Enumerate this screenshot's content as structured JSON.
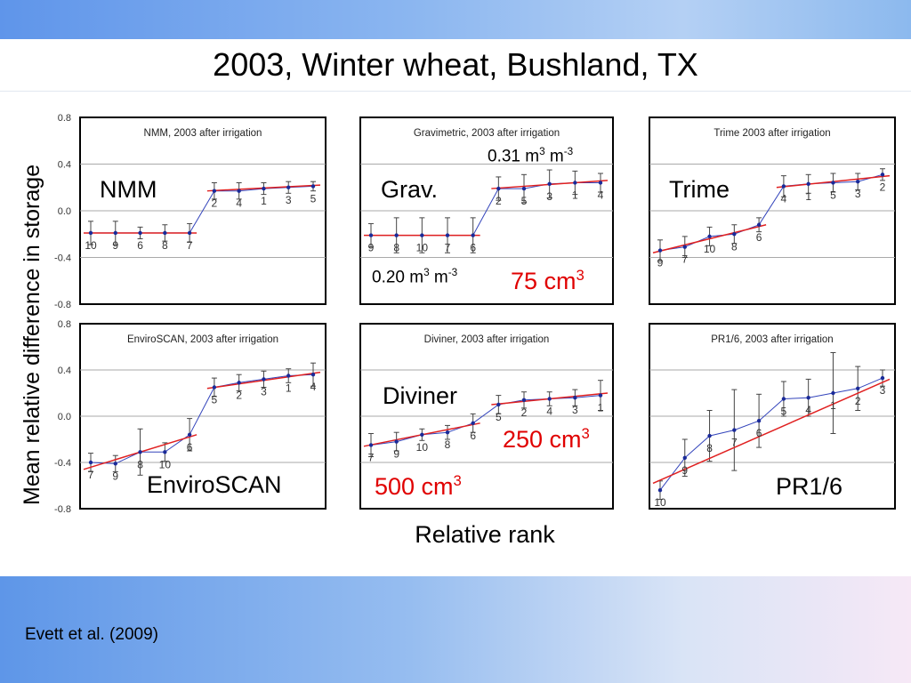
{
  "slide": {
    "title": "2003, Winter wheat, Bushland, TX",
    "ylabel": "Mean relative difference in storage",
    "xlabel": "Relative rank",
    "citation": "Evett et al. (2009)"
  },
  "y_ticks": [
    "0.8",
    "0.4",
    "0.0",
    "-0.4",
    "-0.8"
  ],
  "colors": {
    "data_line": "#3344bb",
    "fit_line": "#e02020",
    "frame": "#000000",
    "grid": "#aaaaaa",
    "error_bar": "#444444",
    "red_text": "#e00000"
  },
  "chart_data": [
    {
      "type": "line",
      "title": "NMM, 2003 after irrigation",
      "label": "NMM",
      "ylim": [
        -0.8,
        0.8
      ],
      "grid": true,
      "points": [
        {
          "rank": "10",
          "y": -0.19,
          "err": 0.1
        },
        {
          "rank": "9",
          "y": -0.19,
          "err": 0.1
        },
        {
          "rank": "6",
          "y": -0.19,
          "err": 0.05
        },
        {
          "rank": "8",
          "y": -0.19,
          "err": 0.07
        },
        {
          "rank": "7",
          "y": -0.19,
          "err": 0.08
        },
        {
          "rank": "2",
          "y": 0.17,
          "err": 0.07
        },
        {
          "rank": "4",
          "y": 0.17,
          "err": 0.07
        },
        {
          "rank": "1",
          "y": 0.19,
          "err": 0.05
        },
        {
          "rank": "3",
          "y": 0.2,
          "err": 0.05
        },
        {
          "rank": "5",
          "y": 0.21,
          "err": 0.04
        }
      ],
      "fits": [
        {
          "from": 0,
          "to": 4,
          "y0": -0.19,
          "y1": -0.19
        },
        {
          "from": 5,
          "to": 9,
          "y0": 0.17,
          "y1": 0.22
        }
      ]
    },
    {
      "type": "line",
      "title": "Gravimetric, 2003 after irrigation",
      "label": "Grav.",
      "ylim": [
        -0.8,
        0.8
      ],
      "grid": true,
      "points": [
        {
          "rank": "9",
          "y": -0.21,
          "err": 0.1
        },
        {
          "rank": "8",
          "y": -0.21,
          "err": 0.15
        },
        {
          "rank": "10",
          "y": -0.21,
          "err": 0.15
        },
        {
          "rank": "7",
          "y": -0.21,
          "err": 0.15
        },
        {
          "rank": "6",
          "y": -0.21,
          "err": 0.15
        },
        {
          "rank": "2",
          "y": 0.19,
          "err": 0.1
        },
        {
          "rank": "5",
          "y": 0.19,
          "err": 0.12
        },
        {
          "rank": "3",
          "y": 0.23,
          "err": 0.12
        },
        {
          "rank": "1",
          "y": 0.24,
          "err": 0.1
        },
        {
          "rank": "4",
          "y": 0.24,
          "err": 0.08
        }
      ],
      "fits": [
        {
          "from": 0,
          "to": 4,
          "y0": -0.21,
          "y1": -0.21
        },
        {
          "from": 5,
          "to": 9,
          "y0": 0.19,
          "y1": 0.26
        }
      ],
      "annotations": [
        {
          "text": "0.31 m",
          "sup1": "3",
          "mid": " m",
          "sup2": "-3",
          "color": "#000000"
        },
        {
          "text": "0.20 m",
          "sup1": "3",
          "mid": " m",
          "sup2": "-3",
          "color": "#000000"
        },
        {
          "text": "75 cm",
          "sup1": "3",
          "color": "#e00000"
        }
      ]
    },
    {
      "type": "line",
      "title": "Trime 2003 after irrigation",
      "label": "Trime",
      "ylim": [
        -0.8,
        0.8
      ],
      "grid": true,
      "points": [
        {
          "rank": "9",
          "y": -0.34,
          "err": 0.09
        },
        {
          "rank": "7",
          "y": -0.31,
          "err": 0.09
        },
        {
          "rank": "10",
          "y": -0.22,
          "err": 0.08
        },
        {
          "rank": "8",
          "y": -0.2,
          "err": 0.08
        },
        {
          "rank": "6",
          "y": -0.12,
          "err": 0.06
        },
        {
          "rank": "4",
          "y": 0.21,
          "err": 0.09
        },
        {
          "rank": "1",
          "y": 0.23,
          "err": 0.08
        },
        {
          "rank": "5",
          "y": 0.24,
          "err": 0.08
        },
        {
          "rank": "3",
          "y": 0.25,
          "err": 0.07
        },
        {
          "rank": "2",
          "y": 0.31,
          "err": 0.05
        }
      ],
      "fits": [
        {
          "from": 0,
          "to": 4,
          "y0": -0.36,
          "y1": -0.12
        },
        {
          "from": 5,
          "to": 9,
          "y0": 0.2,
          "y1": 0.3
        }
      ]
    },
    {
      "type": "line",
      "title": "EnviroSCAN, 2003 after irrigation",
      "label": "EnviroSCAN",
      "ylim": [
        -0.8,
        0.8
      ],
      "grid": true,
      "points": [
        {
          "rank": "7",
          "y": -0.4,
          "err": 0.08
        },
        {
          "rank": "9",
          "y": -0.41,
          "err": 0.07
        },
        {
          "rank": "8",
          "y": -0.31,
          "err": 0.2
        },
        {
          "rank": "10",
          "y": -0.31,
          "err": 0.08
        },
        {
          "rank": "6",
          "y": -0.16,
          "err": 0.14
        },
        {
          "rank": "5",
          "y": 0.25,
          "err": 0.08
        },
        {
          "rank": "2",
          "y": 0.29,
          "err": 0.07
        },
        {
          "rank": "3",
          "y": 0.32,
          "err": 0.07
        },
        {
          "rank": "1",
          "y": 0.35,
          "err": 0.06
        },
        {
          "rank": "4",
          "y": 0.36,
          "err": 0.1
        }
      ],
      "fits": [
        {
          "from": 0,
          "to": 4,
          "y0": -0.46,
          "y1": -0.16
        },
        {
          "from": 5,
          "to": 9,
          "y0": 0.24,
          "y1": 0.38
        }
      ]
    },
    {
      "type": "line",
      "title": "Diviner, 2003 after irrigation",
      "label": "Diviner",
      "ylim": [
        -0.8,
        0.8
      ],
      "grid": true,
      "points": [
        {
          "rank": "7",
          "y": -0.25,
          "err": 0.1
        },
        {
          "rank": "9",
          "y": -0.22,
          "err": 0.08
        },
        {
          "rank": "10",
          "y": -0.16,
          "err": 0.05
        },
        {
          "rank": "8",
          "y": -0.14,
          "err": 0.06
        },
        {
          "rank": "6",
          "y": -0.06,
          "err": 0.08
        },
        {
          "rank": "5",
          "y": 0.1,
          "err": 0.08
        },
        {
          "rank": "2",
          "y": 0.14,
          "err": 0.07
        },
        {
          "rank": "4",
          "y": 0.15,
          "err": 0.06
        },
        {
          "rank": "3",
          "y": 0.16,
          "err": 0.07
        },
        {
          "rank": "1",
          "y": 0.18,
          "err": 0.13
        }
      ],
      "fits": [
        {
          "from": 0,
          "to": 4,
          "y0": -0.26,
          "y1": -0.06
        },
        {
          "from": 5,
          "to": 9,
          "y0": 0.1,
          "y1": 0.2
        }
      ],
      "annotations": [
        {
          "text": "250 cm",
          "sup1": "3",
          "color": "#e00000"
        },
        {
          "text": "500 cm",
          "sup1": "3",
          "color": "#e00000"
        }
      ]
    },
    {
      "type": "line",
      "title": "PR1/6, 2003 after irrigation",
      "label": "PR1/6",
      "ylim": [
        -0.8,
        0.8
      ],
      "grid": true,
      "points": [
        {
          "rank": "10",
          "y": -0.64,
          "err": 0.08
        },
        {
          "rank": "9",
          "y": -0.36,
          "err": 0.16
        },
        {
          "rank": "8",
          "y": -0.17,
          "err": 0.22
        },
        {
          "rank": "7",
          "y": -0.12,
          "err": 0.35
        },
        {
          "rank": "6",
          "y": -0.04,
          "err": 0.23
        },
        {
          "rank": "5",
          "y": 0.15,
          "err": 0.15
        },
        {
          "rank": "4",
          "y": 0.16,
          "err": 0.16
        },
        {
          "rank": "1",
          "y": 0.2,
          "err": 0.35
        },
        {
          "rank": "2",
          "y": 0.24,
          "err": 0.19
        },
        {
          "rank": "3",
          "y": 0.33,
          "err": 0.07
        }
      ],
      "fits": [
        {
          "from": 0,
          "to": 9,
          "y0": -0.58,
          "y1": 0.32
        }
      ]
    }
  ]
}
